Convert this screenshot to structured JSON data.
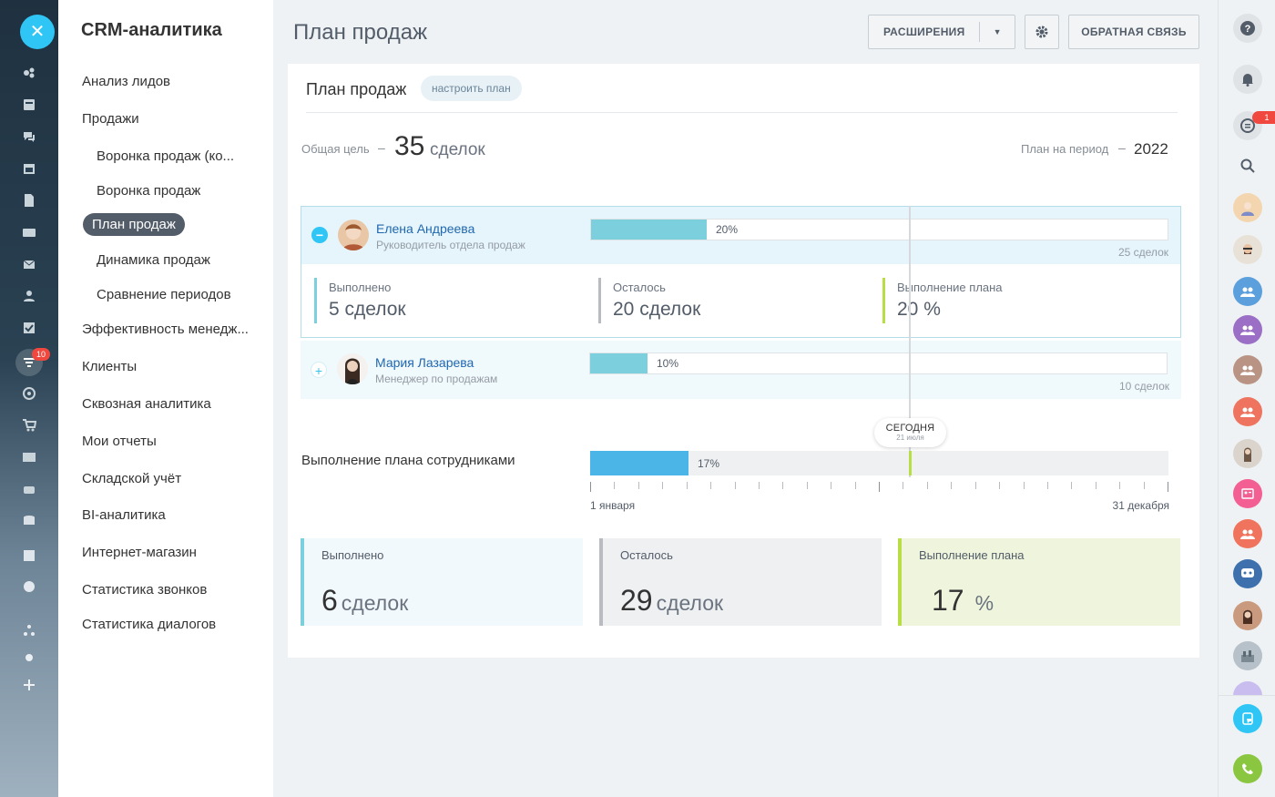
{
  "menu": {
    "title": "CRM-аналитика",
    "items": [
      {
        "label": "Анализ лидов"
      },
      {
        "label": "Продажи"
      },
      {
        "label": "Воронка продаж (ко..."
      },
      {
        "label": "Воронка продаж"
      },
      {
        "label": "План продаж"
      },
      {
        "label": "Динамика продаж"
      },
      {
        "label": "Сравнение периодов"
      },
      {
        "label": "Эффективность менедж..."
      },
      {
        "label": "Клиенты"
      },
      {
        "label": "Сквозная аналитика"
      },
      {
        "label": "Мои отчеты"
      },
      {
        "label": "Складской учёт"
      },
      {
        "label": "BI-аналитика"
      },
      {
        "label": "Интернет-магазин"
      },
      {
        "label": "Статистика звонков"
      },
      {
        "label": "Статистика диалогов"
      }
    ]
  },
  "rail": {
    "badge": "10",
    "close_icon": "close-icon"
  },
  "header": {
    "title": "План продаж",
    "extensions_label": "РАСШИРЕНИЯ",
    "feedback_label": "ОБРАТНАЯ СВЯЗЬ"
  },
  "card": {
    "title": "План продаж",
    "configure_label": "настроить план",
    "goal_label": "Общая цель",
    "goal_dash": "–",
    "goal_value": "35",
    "goal_unit": "сделок",
    "period_label": "План на период",
    "period_dash": "–",
    "period_value": "2022"
  },
  "employees": [
    {
      "name": "Елена Андреева",
      "role": "Руководитель отдела продаж",
      "progress_percent": 20,
      "progress_label": "20%",
      "total_label": "25 сделок",
      "stats": {
        "done_label": "Выполнено",
        "done_value": "5 сделок",
        "left_label": "Осталось",
        "left_value": "20 сделок",
        "rate_label": "Выполнение плана",
        "rate_value": "20 %"
      }
    },
    {
      "name": "Мария Лазарева",
      "role": "Менеджер по продажам",
      "progress_percent": 10,
      "progress_label": "10%",
      "total_label": "10 сделок"
    }
  ],
  "today": {
    "label": "СЕГОДНЯ",
    "date": "21 июля",
    "year_fraction": 0.553
  },
  "team": {
    "label": "Выполнение плана сотрудниками",
    "progress_percent": 17,
    "progress_label": "17%",
    "axis_start": "1 января",
    "axis_end": "31 декабря"
  },
  "summary": [
    {
      "label": "Выполнено",
      "value": "6",
      "unit": "сделок",
      "color": "#7ccfdd"
    },
    {
      "label": "Осталось",
      "value": "29",
      "unit": "сделок",
      "color": "#b8bcc0"
    },
    {
      "label": "Выполнение плана",
      "value": "17",
      "unit": "%",
      "color": "#b9de45"
    }
  ],
  "right_rail": {
    "chat_badge": "1"
  },
  "colors": {
    "accent": "#2fc6f6",
    "link": "#2067b0",
    "bar": "#7ccfdd",
    "team_bar": "#4cb5e8",
    "today": "#b9de45"
  }
}
